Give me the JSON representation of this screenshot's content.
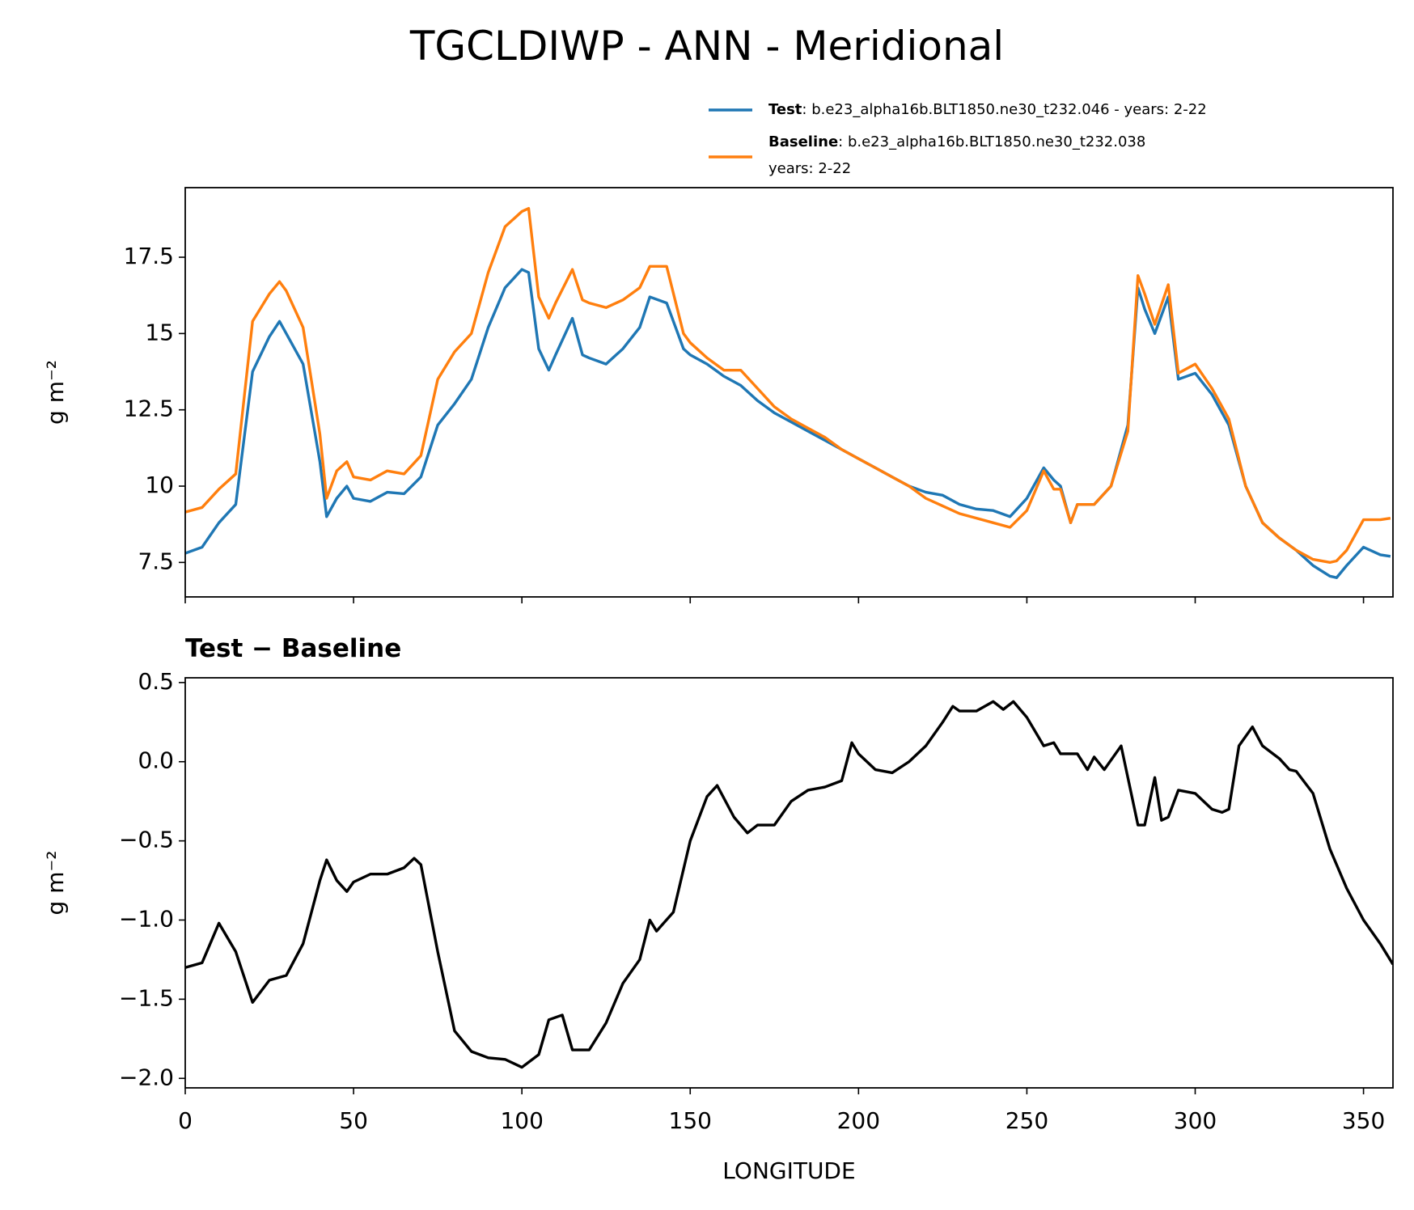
{
  "chart_data": [
    {
      "type": "line",
      "title": "TGCLDIWP - ANN - Meridional",
      "ylabel": "g m⁻²",
      "legend": true,
      "x": [
        0,
        5,
        10,
        15,
        20,
        25,
        28,
        30,
        35,
        40,
        42,
        45,
        48,
        50,
        55,
        60,
        65,
        70,
        75,
        80,
        85,
        90,
        95,
        100,
        102,
        105,
        108,
        110,
        115,
        118,
        120,
        125,
        130,
        135,
        138,
        143,
        148,
        150,
        155,
        160,
        165,
        170,
        175,
        180,
        185,
        190,
        195,
        200,
        205,
        210,
        215,
        220,
        225,
        230,
        235,
        240,
        245,
        250,
        255,
        258,
        260,
        263,
        265,
        270,
        275,
        280,
        283,
        285,
        288,
        292,
        295,
        300,
        305,
        310,
        315,
        320,
        325,
        330,
        335,
        340,
        342,
        345,
        350,
        355,
        358
      ],
      "series": [
        {
          "name": "Test",
          "label": [
            ": b.e23_alpha16b.BLT1850.ne30_t232.046 - years: 2-22"
          ],
          "color": "#1f77b4",
          "values": [
            7.8,
            8.0,
            8.8,
            9.4,
            13.75,
            14.9,
            15.4,
            15.0,
            14.0,
            10.8,
            9.0,
            9.6,
            10.0,
            9.6,
            9.5,
            9.8,
            9.75,
            10.3,
            12.0,
            12.7,
            13.5,
            15.2,
            16.5,
            17.1,
            17.0,
            14.5,
            13.8,
            14.3,
            15.5,
            14.3,
            14.2,
            14.0,
            14.5,
            15.2,
            16.2,
            16.0,
            14.5,
            14.3,
            14.0,
            13.6,
            13.3,
            12.8,
            12.4,
            12.1,
            11.8,
            11.5,
            11.2,
            10.9,
            10.6,
            10.3,
            10.0,
            9.8,
            9.7,
            9.4,
            9.25,
            9.2,
            9.0,
            9.6,
            10.6,
            10.2,
            10.0,
            8.8,
            9.4,
            9.4,
            10.0,
            12.0,
            16.5,
            15.8,
            15.0,
            16.2,
            13.5,
            13.7,
            13.0,
            12.0,
            10.0,
            8.8,
            8.3,
            7.9,
            7.4,
            7.05,
            7.0,
            7.4,
            8.0,
            7.75,
            7.7
          ]
        },
        {
          "name": "Baseline",
          "label": [
            ": b.e23_alpha16b.BLT1850.ne30_t232.038",
            "years: 2-22"
          ],
          "color": "#ff7f0e",
          "values": [
            9.15,
            9.3,
            9.9,
            10.4,
            15.4,
            16.3,
            16.7,
            16.4,
            15.2,
            11.7,
            9.6,
            10.5,
            10.8,
            10.3,
            10.2,
            10.5,
            10.4,
            11.0,
            13.5,
            14.4,
            15.0,
            17.0,
            18.5,
            19.0,
            19.1,
            16.2,
            15.5,
            16.0,
            17.1,
            16.1,
            16.0,
            15.85,
            16.1,
            16.5,
            17.2,
            17.2,
            15.0,
            14.7,
            14.2,
            13.8,
            13.8,
            13.2,
            12.6,
            12.2,
            11.9,
            11.6,
            11.2,
            10.9,
            10.6,
            10.3,
            10.0,
            9.6,
            9.35,
            9.1,
            8.95,
            8.8,
            8.65,
            9.2,
            10.5,
            9.9,
            9.9,
            8.8,
            9.4,
            9.4,
            10.0,
            11.8,
            16.9,
            16.3,
            15.3,
            16.6,
            13.7,
            14.0,
            13.2,
            12.2,
            10.0,
            8.8,
            8.3,
            7.9,
            7.6,
            7.5,
            7.55,
            7.9,
            8.9,
            8.9,
            8.95
          ]
        }
      ],
      "xlim": [
        0,
        358.75
      ],
      "xticks": [
        0,
        50,
        100,
        150,
        200,
        250,
        300,
        350
      ],
      "ylim": [
        6.37,
        19.78
      ],
      "yticks": [
        7.5,
        10.0,
        12.5,
        15.0,
        17.5
      ]
    },
    {
      "type": "line",
      "title": "Test − Baseline",
      "xlabel": "LONGITUDE",
      "ylabel": "g m⁻²",
      "x": [
        0,
        5,
        10,
        15,
        20,
        25,
        30,
        35,
        40,
        42,
        45,
        48,
        50,
        55,
        60,
        65,
        68,
        70,
        75,
        80,
        85,
        90,
        95,
        100,
        105,
        108,
        112,
        115,
        120,
        125,
        130,
        135,
        138,
        140,
        145,
        150,
        155,
        158,
        163,
        167,
        170,
        175,
        180,
        185,
        190,
        195,
        198,
        200,
        205,
        210,
        215,
        220,
        225,
        228,
        230,
        235,
        240,
        243,
        246,
        250,
        255,
        258,
        260,
        265,
        268,
        270,
        273,
        278,
        283,
        285,
        288,
        290,
        292,
        295,
        300,
        305,
        308,
        310,
        313,
        317,
        320,
        325,
        328,
        330,
        335,
        340,
        345,
        350,
        355,
        358.75
      ],
      "series": [
        {
          "name": "Test − Baseline",
          "color": "#000000",
          "values": [
            -1.3,
            -1.27,
            -1.02,
            -1.2,
            -1.52,
            -1.38,
            -1.35,
            -1.15,
            -0.75,
            -0.62,
            -0.75,
            -0.82,
            -0.76,
            -0.71,
            -0.71,
            -0.67,
            -0.61,
            -0.65,
            -1.2,
            -1.7,
            -1.83,
            -1.87,
            -1.88,
            -1.93,
            -1.85,
            -1.63,
            -1.6,
            -1.82,
            -1.82,
            -1.65,
            -1.4,
            -1.25,
            -1.0,
            -1.07,
            -0.95,
            -0.5,
            -0.22,
            -0.15,
            -0.35,
            -0.45,
            -0.4,
            -0.4,
            -0.25,
            -0.18,
            -0.16,
            -0.12,
            0.12,
            0.05,
            -0.05,
            -0.07,
            0.0,
            0.1,
            0.25,
            0.35,
            0.32,
            0.32,
            0.38,
            0.33,
            0.38,
            0.28,
            0.1,
            0.12,
            0.05,
            0.05,
            -0.05,
            0.03,
            -0.05,
            0.1,
            -0.4,
            -0.4,
            -0.1,
            -0.37,
            -0.35,
            -0.18,
            -0.2,
            -0.3,
            -0.32,
            -0.3,
            0.1,
            0.22,
            0.1,
            0.02,
            -0.05,
            -0.06,
            -0.2,
            -0.55,
            -0.8,
            -1.0,
            -1.15,
            -1.28
          ]
        }
      ],
      "xlim": [
        0,
        358.75
      ],
      "xticks": [
        0,
        50,
        100,
        150,
        200,
        250,
        300,
        350
      ],
      "ylim": [
        -2.06,
        0.53
      ],
      "yticks": [
        {
          "value": 0.5,
          "label": "0.5"
        },
        {
          "value": 0.0,
          "label": "0.0"
        },
        {
          "value": -0.5,
          "label": "−0.5"
        },
        {
          "value": -1.0,
          "label": "−1.0"
        },
        {
          "value": -1.5,
          "label": "−1.5"
        },
        {
          "value": -2.0,
          "label": "−2.0"
        }
      ]
    }
  ]
}
